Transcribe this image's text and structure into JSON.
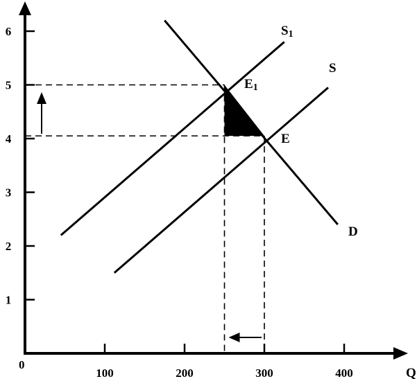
{
  "chart_data": {
    "type": "line",
    "title": "",
    "xlabel": "Q",
    "ylabel": "",
    "origin_label": "0",
    "xlim": [
      0,
      460
    ],
    "ylim": [
      0,
      6.6
    ],
    "x_ticks": [
      100,
      200,
      300,
      400
    ],
    "y_ticks": [
      1,
      2,
      3,
      4,
      5,
      6
    ],
    "x_tick_labels": [
      "100",
      "200",
      "300",
      "400"
    ],
    "y_tick_labels": [
      "1",
      "2",
      "3",
      "4",
      "5",
      "6"
    ],
    "grid": false,
    "legend": "none",
    "series": [
      {
        "name": "S1",
        "x": [
          45,
          325
        ],
        "y": [
          2.2,
          5.8
        ]
      },
      {
        "name": "S",
        "x": [
          112,
          380
        ],
        "y": [
          1.5,
          4.95
        ]
      },
      {
        "name": "D",
        "x": [
          175,
          392
        ],
        "y": [
          6.2,
          2.4
        ]
      }
    ],
    "points": [
      {
        "name": "E1",
        "x": 250,
        "y": 5.0
      },
      {
        "name": "E",
        "x": 300,
        "y": 4.05
      }
    ],
    "guides": {
      "price_levels": [
        5.0,
        4.05
      ],
      "quantity_levels": [
        250,
        300
      ]
    },
    "shaded_triangle": [
      {
        "x": 250,
        "y": 5.0
      },
      {
        "x": 250,
        "y": 4.05
      },
      {
        "x": 300,
        "y": 4.05
      }
    ],
    "annotations": [
      {
        "type": "arrow",
        "direction": "up",
        "meaning": "price rises"
      },
      {
        "type": "arrow",
        "direction": "left",
        "meaning": "quantity falls"
      }
    ],
    "curve_labels": {
      "S1": {
        "base": "S",
        "sub": "1"
      },
      "S": {
        "base": "S",
        "sub": ""
      },
      "D": {
        "base": "D",
        "sub": ""
      },
      "E1": {
        "base": "E",
        "sub": "1"
      },
      "E": {
        "base": "E",
        "sub": ""
      }
    }
  }
}
